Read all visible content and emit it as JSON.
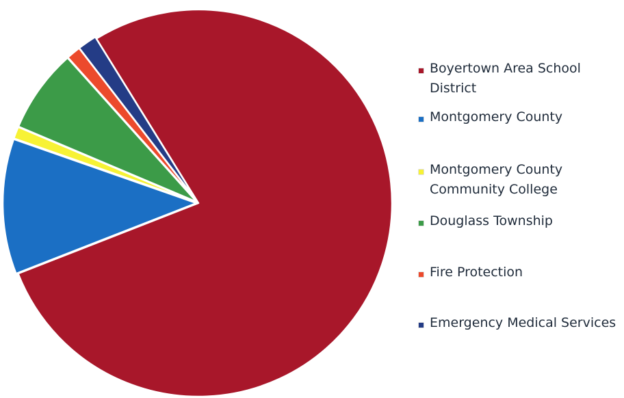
{
  "chart_data": {
    "type": "pie",
    "title": "",
    "slices": [
      {
        "name": "Boyertown Area School District",
        "value": 77.9,
        "color": "#a8172a"
      },
      {
        "name": "Montgomery County",
        "value": 11.3,
        "color": "#1b6fc4"
      },
      {
        "name": "Montgomery County Community College",
        "value": 1.0,
        "color": "#f7f235"
      },
      {
        "name": "Douglass Township",
        "value": 7.0,
        "color": "#3c9b48"
      },
      {
        "name": "Fire Protection",
        "value": 1.2,
        "color": "#ec4a2c"
      },
      {
        "name": "Emergency Medical Services",
        "value": 1.6,
        "color": "#243c86"
      }
    ],
    "legend_position": "right"
  },
  "legend": {
    "items": [
      {
        "label_lines": [
          "Boyertown Area School",
          "District"
        ]
      },
      {
        "label_lines": [
          "Montgomery County"
        ]
      },
      {
        "label_lines": [
          "Montgomery County",
          "Community College"
        ]
      },
      {
        "label_lines": [
          "Douglass Township"
        ]
      },
      {
        "label_lines": [
          "Fire Protection"
        ]
      },
      {
        "label_lines": [
          "Emergency Medical Services"
        ]
      }
    ]
  }
}
